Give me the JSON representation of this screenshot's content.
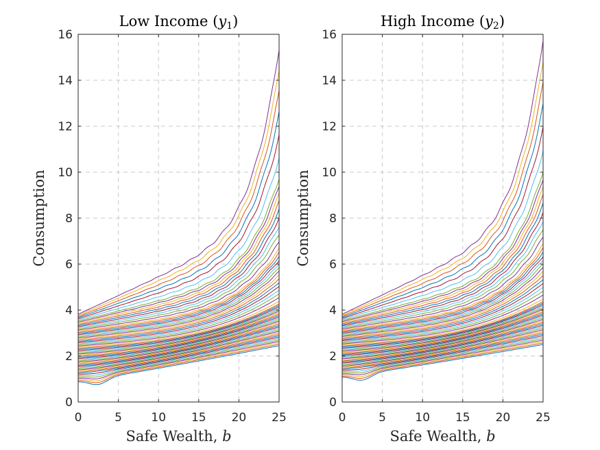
{
  "chart_data": [
    {
      "type": "line",
      "title": "Low Income (y₁)",
      "title_parts": [
        "Low Income (",
        "y",
        "1",
        ")"
      ],
      "xlabel_parts": [
        "Safe Wealth, ",
        "b"
      ],
      "ylabel": "Consumption",
      "xlim": [
        0,
        25
      ],
      "ylim": [
        0,
        16
      ],
      "xticks": [
        "0",
        "5",
        "10",
        "15",
        "20",
        "25"
      ],
      "yticks": [
        "0",
        "2",
        "4",
        "6",
        "8",
        "10",
        "12",
        "14",
        "16"
      ],
      "grid": true,
      "curve_family": {
        "count": 60,
        "x_range": [
          0,
          25
        ],
        "lowest_curve": {
          "start": 0.9,
          "end": 2.45
        },
        "highest_curve": {
          "start": 3.82,
          "end": 15.4
        },
        "end_value_at_curve_fraction_0_5": 4.3,
        "end_value_at_curve_fraction_0_75": 6.7,
        "end_value_at_curve_fraction_0_9": 9.8
      }
    },
    {
      "type": "line",
      "title": "High Income (y₂)",
      "title_parts": [
        "High Income (",
        "y",
        "2",
        ")"
      ],
      "xlabel_parts": [
        "Safe Wealth, ",
        "b"
      ],
      "ylabel": "Consumption",
      "xlim": [
        0,
        25
      ],
      "ylim": [
        0,
        16
      ],
      "xticks": [
        "0",
        "5",
        "10",
        "15",
        "20",
        "25"
      ],
      "yticks": [
        "0",
        "2",
        "4",
        "6",
        "8",
        "10",
        "12",
        "14",
        "16"
      ],
      "grid": true,
      "curve_family": {
        "count": 60,
        "x_range": [
          0,
          25
        ],
        "lowest_curve": {
          "start": 1.1,
          "end": 2.5
        },
        "highest_curve": {
          "start": 3.82,
          "end": 15.8
        },
        "end_value_at_curve_fraction_0_5": 4.4,
        "end_value_at_curve_fraction_0_75": 6.9,
        "end_value_at_curve_fraction_0_9": 10.1
      }
    }
  ],
  "colors": {
    "series_cycle": [
      "#0072bd",
      "#d95319",
      "#edb120",
      "#7e2f8e",
      "#77ac30",
      "#4dbeee",
      "#a2142f"
    ]
  }
}
